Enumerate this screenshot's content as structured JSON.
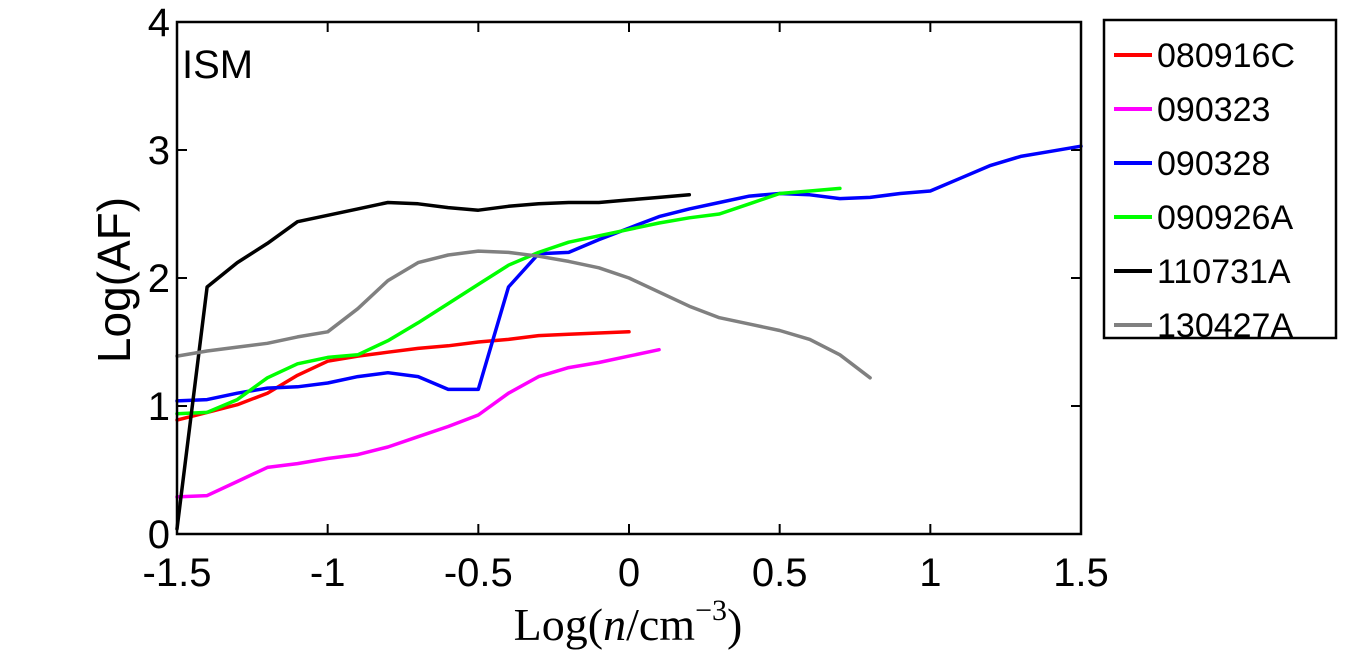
{
  "chart_data": {
    "type": "line",
    "title": "",
    "annotation": "ISM",
    "ylabel": "Log(AF)",
    "xlabel": {
      "prefix": "Log(",
      "var": "n",
      "unit": "/cm",
      "exponent": "−3",
      "suffix": ")"
    },
    "xlim": [
      -1.5,
      1.5
    ],
    "ylim": [
      0,
      4
    ],
    "xticks": [
      -1.5,
      -1,
      -0.5,
      0,
      0.5,
      1,
      1.5
    ],
    "xtick_labels": [
      "-1.5",
      "-1",
      "-0.5",
      "0",
      "0.5",
      "1",
      "1.5"
    ],
    "yticks": [
      0,
      1,
      2,
      3,
      4
    ],
    "ytick_labels": [
      "0",
      "1",
      "2",
      "3",
      "4"
    ],
    "grid": false,
    "legend_position": "outside-right-top",
    "series": [
      {
        "name": "080916C",
        "color": "#ff0000",
        "x": [
          -1.5,
          -1.4,
          -1.3,
          -1.2,
          -1.1,
          -1.0,
          -0.9,
          -0.8,
          -0.7,
          -0.6,
          -0.5,
          -0.4,
          -0.3,
          -0.2,
          -0.1,
          0.0
        ],
        "y": [
          0.89,
          0.95,
          1.01,
          1.1,
          1.24,
          1.35,
          1.39,
          1.42,
          1.45,
          1.47,
          1.5,
          1.52,
          1.55,
          1.56,
          1.57,
          1.58
        ]
      },
      {
        "name": "090323",
        "color": "#ff00ff",
        "x": [
          -1.5,
          -1.4,
          -1.3,
          -1.2,
          -1.1,
          -1.0,
          -0.9,
          -0.8,
          -0.7,
          -0.6,
          -0.5,
          -0.4,
          -0.3,
          -0.2,
          -0.1,
          0.0,
          0.1
        ],
        "y": [
          0.29,
          0.3,
          0.41,
          0.52,
          0.55,
          0.59,
          0.62,
          0.68,
          0.76,
          0.84,
          0.93,
          1.1,
          1.23,
          1.3,
          1.34,
          1.39,
          1.44
        ]
      },
      {
        "name": "090328",
        "color": "#0000ff",
        "x": [
          -1.5,
          -1.4,
          -1.3,
          -1.2,
          -1.1,
          -1.0,
          -0.9,
          -0.8,
          -0.7,
          -0.6,
          -0.5,
          -0.4,
          -0.3,
          -0.2,
          -0.1,
          0.0,
          0.1,
          0.2,
          0.3,
          0.4,
          0.5,
          0.6,
          0.7,
          0.8,
          0.9,
          1.0,
          1.1,
          1.2,
          1.3,
          1.4,
          1.5
        ],
        "y": [
          1.04,
          1.05,
          1.1,
          1.14,
          1.15,
          1.18,
          1.23,
          1.26,
          1.23,
          1.13,
          1.13,
          1.93,
          2.19,
          2.2,
          2.3,
          2.39,
          2.48,
          2.54,
          2.59,
          2.64,
          2.66,
          2.65,
          2.62,
          2.63,
          2.66,
          2.68,
          2.78,
          2.88,
          2.95,
          2.99,
          3.03
        ]
      },
      {
        "name": "090926A",
        "color": "#00ff00",
        "x": [
          -1.5,
          -1.4,
          -1.3,
          -1.2,
          -1.1,
          -1.0,
          -0.9,
          -0.8,
          -0.7,
          -0.6,
          -0.5,
          -0.4,
          -0.3,
          -0.2,
          -0.1,
          0.0,
          0.1,
          0.2,
          0.3,
          0.4,
          0.5,
          0.6,
          0.7
        ],
        "y": [
          0.94,
          0.95,
          1.05,
          1.22,
          1.33,
          1.38,
          1.4,
          1.51,
          1.65,
          1.8,
          1.95,
          2.1,
          2.2,
          2.28,
          2.33,
          2.38,
          2.43,
          2.47,
          2.5,
          2.58,
          2.66,
          2.68,
          2.7
        ]
      },
      {
        "name": "110731A",
        "color": "#000000",
        "x": [
          -1.5,
          -1.4,
          -1.3,
          -1.2,
          -1.1,
          -1.0,
          -0.9,
          -0.8,
          -0.7,
          -0.6,
          -0.5,
          -0.4,
          -0.3,
          -0.2,
          -0.1,
          0.0,
          0.1,
          0.2
        ],
        "y": [
          0.04,
          1.93,
          2.12,
          2.27,
          2.44,
          2.49,
          2.54,
          2.59,
          2.58,
          2.55,
          2.53,
          2.56,
          2.58,
          2.59,
          2.59,
          2.61,
          2.63,
          2.65
        ]
      },
      {
        "name": "130427A",
        "color": "#808080",
        "x": [
          -1.5,
          -1.4,
          -1.3,
          -1.2,
          -1.1,
          -1.0,
          -0.9,
          -0.8,
          -0.7,
          -0.6,
          -0.5,
          -0.4,
          -0.3,
          -0.2,
          -0.1,
          0.0,
          0.1,
          0.2,
          0.3,
          0.4,
          0.5,
          0.6,
          0.7,
          0.8
        ],
        "y": [
          1.39,
          1.43,
          1.46,
          1.49,
          1.54,
          1.58,
          1.76,
          1.98,
          2.12,
          2.18,
          2.21,
          2.2,
          2.17,
          2.13,
          2.08,
          2.0,
          1.89,
          1.78,
          1.69,
          1.64,
          1.59,
          1.52,
          1.4,
          1.22
        ]
      }
    ]
  }
}
